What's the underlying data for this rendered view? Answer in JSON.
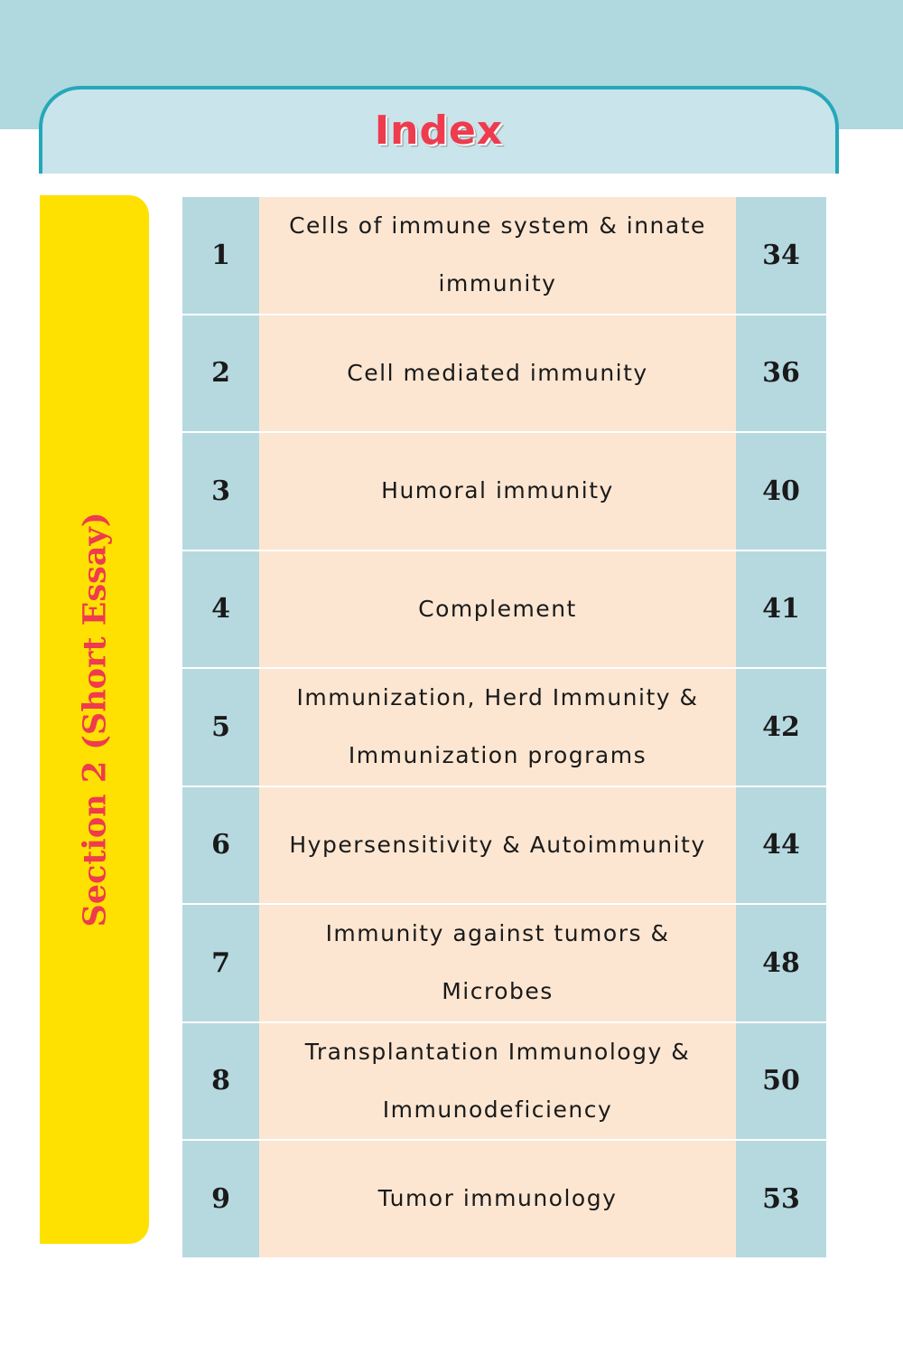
{
  "header": {
    "title": "Index"
  },
  "section": {
    "label": "Section 2 (Short Essay)"
  },
  "rows": [
    {
      "number": "1",
      "topic": "Cells of immune system & innate immunity",
      "page": "34"
    },
    {
      "number": "2",
      "topic": "Cell mediated immunity",
      "page": "36"
    },
    {
      "number": "3",
      "topic": "Humoral immunity",
      "page": "40"
    },
    {
      "number": "4",
      "topic": "Complement",
      "page": "41"
    },
    {
      "number": "5",
      "topic": "Immunization, Herd Immunity & Immunization programs",
      "page": "42"
    },
    {
      "number": "6",
      "topic": "Hypersensitivity & Autoimmunity",
      "page": "44"
    },
    {
      "number": "7",
      "topic": "Immunity against tumors & Microbes",
      "page": "48"
    },
    {
      "number": "8",
      "topic": "Transplantation Immunology & Immunodeficiency",
      "page": "50"
    },
    {
      "number": "9",
      "topic": "Tumor immunology",
      "page": "53"
    }
  ],
  "colors": {
    "top_band": "#b0d8df",
    "header_fill": "#c9e4ea",
    "header_border": "#25a7ba",
    "title_text": "#ee3b4e",
    "section_bar": "#fee100",
    "number_cells": "#b6d9e0",
    "topic_cells": "#fce6d2"
  }
}
